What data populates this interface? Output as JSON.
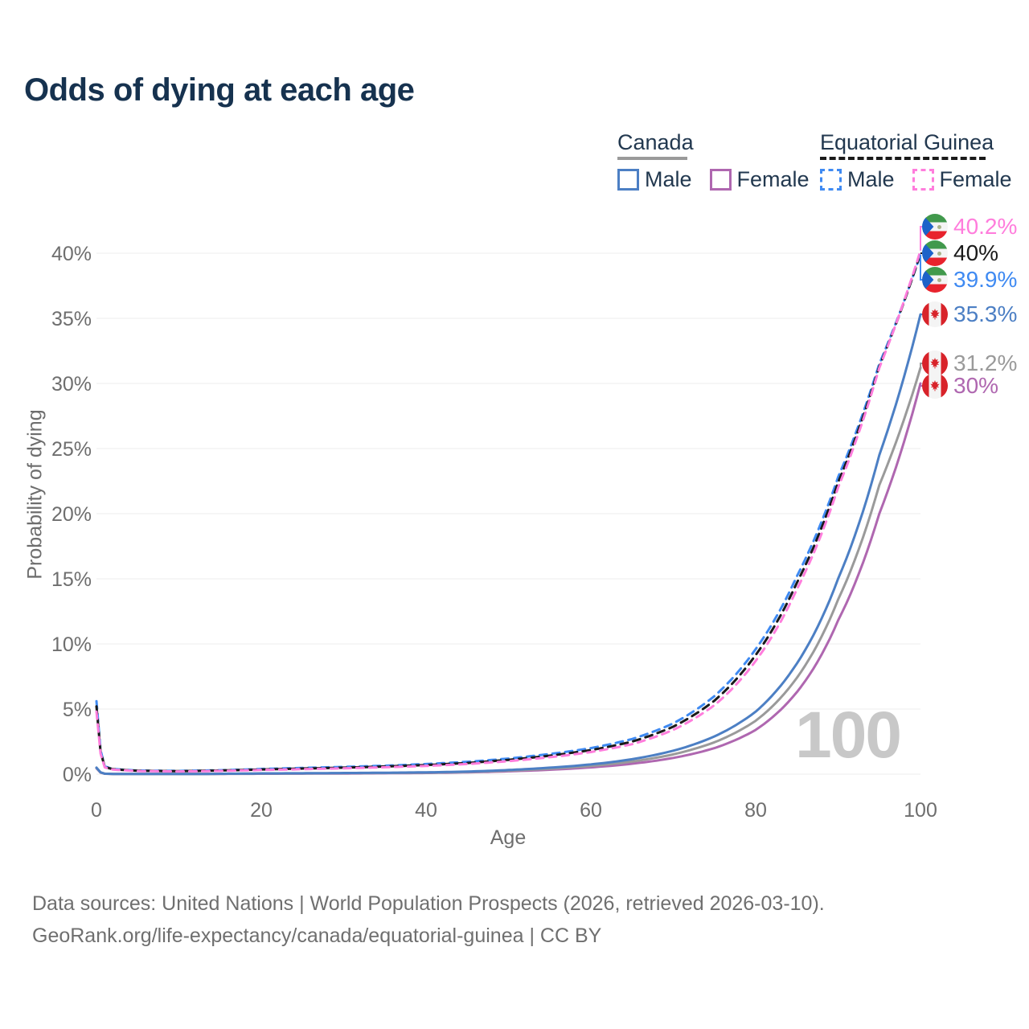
{
  "title": "Odds of dying at each age",
  "legend": {
    "groups": [
      {
        "country": "Canada",
        "line_style": "solid",
        "line_color": "#9a9a9a",
        "items": [
          {
            "label": "Male",
            "color": "#4c7fc4"
          },
          {
            "label": "Female",
            "color": "#af67b0"
          }
        ]
      },
      {
        "country": "Equatorial Guinea",
        "line_style": "dashed",
        "line_color": "#1a1a1a",
        "items": [
          {
            "label": "Male",
            "color": "#3f8af2"
          },
          {
            "label": "Female",
            "color": "#ff7ddc"
          }
        ]
      }
    ]
  },
  "axes": {
    "x": {
      "label": "Age",
      "ticks": [
        0,
        20,
        40,
        60,
        80,
        100
      ]
    },
    "y": {
      "label": "Probability of dying",
      "ticks": [
        "0%",
        "5%",
        "10%",
        "15%",
        "20%",
        "25%",
        "30%",
        "35%",
        "40%"
      ]
    }
  },
  "watermark": "100",
  "footer": {
    "line1": "Data sources: United Nations | World Population Prospects (2026, retrieved 2026-03-10).",
    "line2": "GeoRank.org/life-expectancy/canada/equatorial-guinea | CC BY"
  },
  "chart_data": {
    "type": "line",
    "title": "Odds of dying at each age",
    "xlabel": "Age",
    "ylabel": "Probability of dying",
    "xlim": [
      0,
      100
    ],
    "ylim_percent": [
      0,
      42
    ],
    "grid": "horizontal",
    "legend_position": "top-right",
    "ages": [
      0,
      1,
      2,
      5,
      10,
      15,
      20,
      25,
      30,
      35,
      40,
      45,
      50,
      55,
      60,
      65,
      70,
      75,
      80,
      85,
      90,
      95,
      100
    ],
    "series": [
      {
        "id": "ca_female",
        "name": "Canada Female",
        "country": "canada",
        "color": "#af67b0",
        "dashed": false,
        "values_percent": [
          0.45,
          0.03,
          0.02,
          0.01,
          0.01,
          0.02,
          0.03,
          0.04,
          0.05,
          0.07,
          0.09,
          0.14,
          0.22,
          0.34,
          0.52,
          0.8,
          1.25,
          2.0,
          3.4,
          6.3,
          11.8,
          20.0,
          30.0
        ],
        "end_label": "30%"
      },
      {
        "id": "ca_both",
        "name": "Canada",
        "country": "canada",
        "color": "#9a9a9a",
        "dashed": false,
        "values_percent": [
          0.48,
          0.035,
          0.02,
          0.01,
          0.01,
          0.025,
          0.045,
          0.055,
          0.07,
          0.09,
          0.11,
          0.17,
          0.27,
          0.42,
          0.63,
          0.97,
          1.52,
          2.45,
          4.1,
          7.4,
          13.4,
          22.2,
          31.2
        ],
        "end_label": "31.2%"
      },
      {
        "id": "ca_male",
        "name": "Canada Male",
        "country": "canada",
        "color": "#4c7fc4",
        "dashed": false,
        "values_percent": [
          0.5,
          0.04,
          0.02,
          0.01,
          0.01,
          0.03,
          0.06,
          0.07,
          0.09,
          0.11,
          0.14,
          0.2,
          0.32,
          0.5,
          0.75,
          1.15,
          1.8,
          2.9,
          4.8,
          8.5,
          15.0,
          24.5,
          35.3
        ],
        "end_label": "35.3%"
      },
      {
        "id": "eg_male",
        "name": "Equatorial Guinea Male",
        "country": "eg",
        "color": "#3f8af2",
        "dashed": true,
        "values_percent": [
          5.6,
          0.6,
          0.4,
          0.28,
          0.25,
          0.3,
          0.4,
          0.48,
          0.56,
          0.65,
          0.78,
          0.95,
          1.2,
          1.55,
          2.0,
          2.7,
          3.9,
          6.0,
          9.6,
          15.2,
          22.8,
          31.5,
          39.9
        ],
        "end_label": "39.9%"
      },
      {
        "id": "eg_both",
        "name": "Equatorial Guinea",
        "country": "eg",
        "color": "#1a1a1a",
        "dashed": true,
        "values_percent": [
          5.2,
          0.56,
          0.38,
          0.26,
          0.23,
          0.28,
          0.36,
          0.43,
          0.5,
          0.59,
          0.7,
          0.86,
          1.1,
          1.42,
          1.85,
          2.5,
          3.65,
          5.65,
          9.15,
          14.7,
          22.4,
          31.3,
          40.0
        ],
        "end_label": "40%"
      },
      {
        "id": "eg_female",
        "name": "Equatorial Guinea Female",
        "country": "eg",
        "color": "#ff7ddc",
        "dashed": true,
        "values_percent": [
          4.8,
          0.52,
          0.35,
          0.24,
          0.21,
          0.25,
          0.32,
          0.38,
          0.45,
          0.53,
          0.63,
          0.78,
          1.0,
          1.3,
          1.7,
          2.3,
          3.4,
          5.3,
          8.7,
          14.2,
          22.0,
          31.2,
          40.2
        ],
        "end_label": "40.2%"
      }
    ],
    "hover_age": 100
  }
}
